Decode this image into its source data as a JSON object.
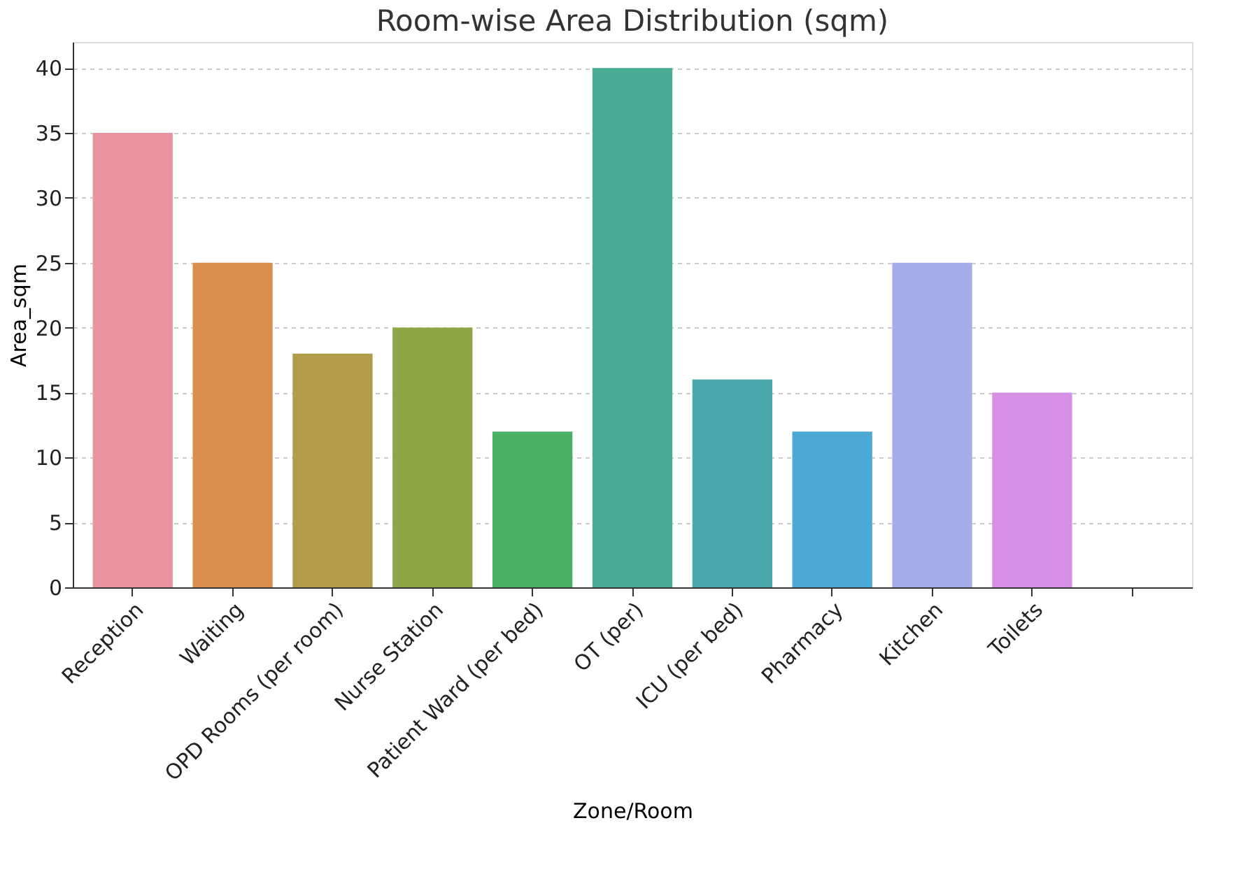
{
  "chart_data": {
    "type": "bar",
    "title": "Room-wise Area Distribution (sqm)",
    "xlabel": "Zone/Room",
    "ylabel": "Area_sqm",
    "categories": [
      "Reception",
      "Waiting",
      "OPD Rooms (per room)",
      "Nurse Station",
      "Patient Ward (per bed)",
      "OT (per)",
      "ICU (per bed)",
      "Pharmacy",
      "Kitchen",
      "Toilets",
      null
    ],
    "values": [
      35,
      25,
      18,
      20,
      12,
      40,
      16,
      12,
      25,
      15,
      null
    ],
    "colors": [
      "#e8939f",
      "#db8f4f",
      "#b29c4a",
      "#8ea646",
      "#4aaf64",
      "#4aab95",
      "#4aa9ae",
      "#4ca8d4",
      "#a6abea",
      "#d68fe4",
      null
    ],
    "ylim": [
      0,
      42
    ],
    "yticks": [
      0,
      5,
      10,
      15,
      20,
      25,
      30,
      35,
      40
    ],
    "grid": "y"
  }
}
